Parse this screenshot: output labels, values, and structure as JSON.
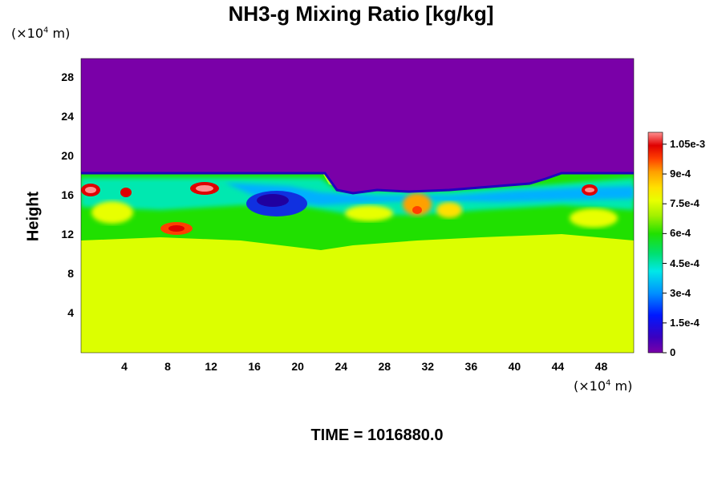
{
  "title": "NH3-g Mixing Ratio [kg/kg]",
  "y_unit": {
    "prefix": "(×10",
    "exp": "4",
    "suffix": " m)"
  },
  "x_unit": {
    "prefix": "(×10",
    "exp": "4",
    "suffix": " m)"
  },
  "time_label": "TIME = 1016880.0",
  "chart_data": {
    "type": "heatmap",
    "title": "NH3-g Mixing Ratio [kg/kg]",
    "ylabel": "Height",
    "xlabel": "",
    "xlim": [
      0,
      51
    ],
    "ylim": [
      0,
      30
    ],
    "x_ticks": [
      "4",
      "8",
      "12",
      "16",
      "20",
      "24",
      "28",
      "32",
      "36",
      "40",
      "44",
      "48"
    ],
    "x_tick_values": [
      4,
      8,
      12,
      16,
      20,
      24,
      28,
      32,
      36,
      40,
      44,
      48
    ],
    "y_ticks": [
      "4",
      "8",
      "12",
      "16",
      "20",
      "24",
      "28"
    ],
    "y_tick_values": [
      4,
      8,
      12,
      16,
      20,
      24,
      28
    ],
    "colorbar": {
      "range": [
        0,
        0.00111
      ],
      "tick_labels": [
        "0",
        "1.5e-4",
        "3e-4",
        "4.5e-4",
        "6e-4",
        "7.5e-4",
        "9e-4",
        "1.05e-3"
      ],
      "tick_values": [
        0,
        0.00015,
        0.0003,
        0.00045,
        0.0006,
        0.00075,
        0.0009,
        0.00105
      ]
    },
    "regions": [
      {
        "name": "upper",
        "y_range": [
          17.5,
          30
        ],
        "approx_value": 0.0
      },
      {
        "name": "mixing-layer",
        "y_range": [
          11,
          18
        ],
        "approx_value": 0.0005
      },
      {
        "name": "lower",
        "y_range": [
          0,
          11
        ],
        "approx_value": 0.00078
      }
    ],
    "colors": {
      "upper": "#7a00a8",
      "lower": "#dcff00"
    }
  }
}
